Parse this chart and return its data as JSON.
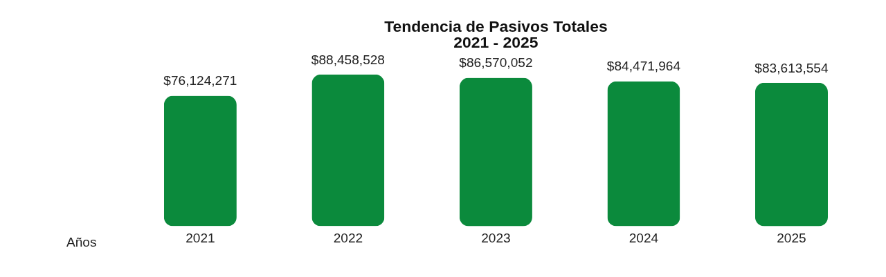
{
  "chart_data": {
    "type": "bar",
    "title": "Tendencia de Pasivos Totales",
    "subtitle": "2021 - 2025",
    "xlabel": "Años",
    "categories": [
      "2021",
      "2022",
      "2023",
      "2024",
      "2025"
    ],
    "values": [
      76124271,
      88458528,
      86570052,
      84471964,
      83613554
    ],
    "value_labels": [
      "$76,124,271",
      "$88,458,528",
      "$86,570,052",
      "$84,471,964",
      "$83,613,554"
    ],
    "color": "#0b8a3c",
    "grid": false
  }
}
